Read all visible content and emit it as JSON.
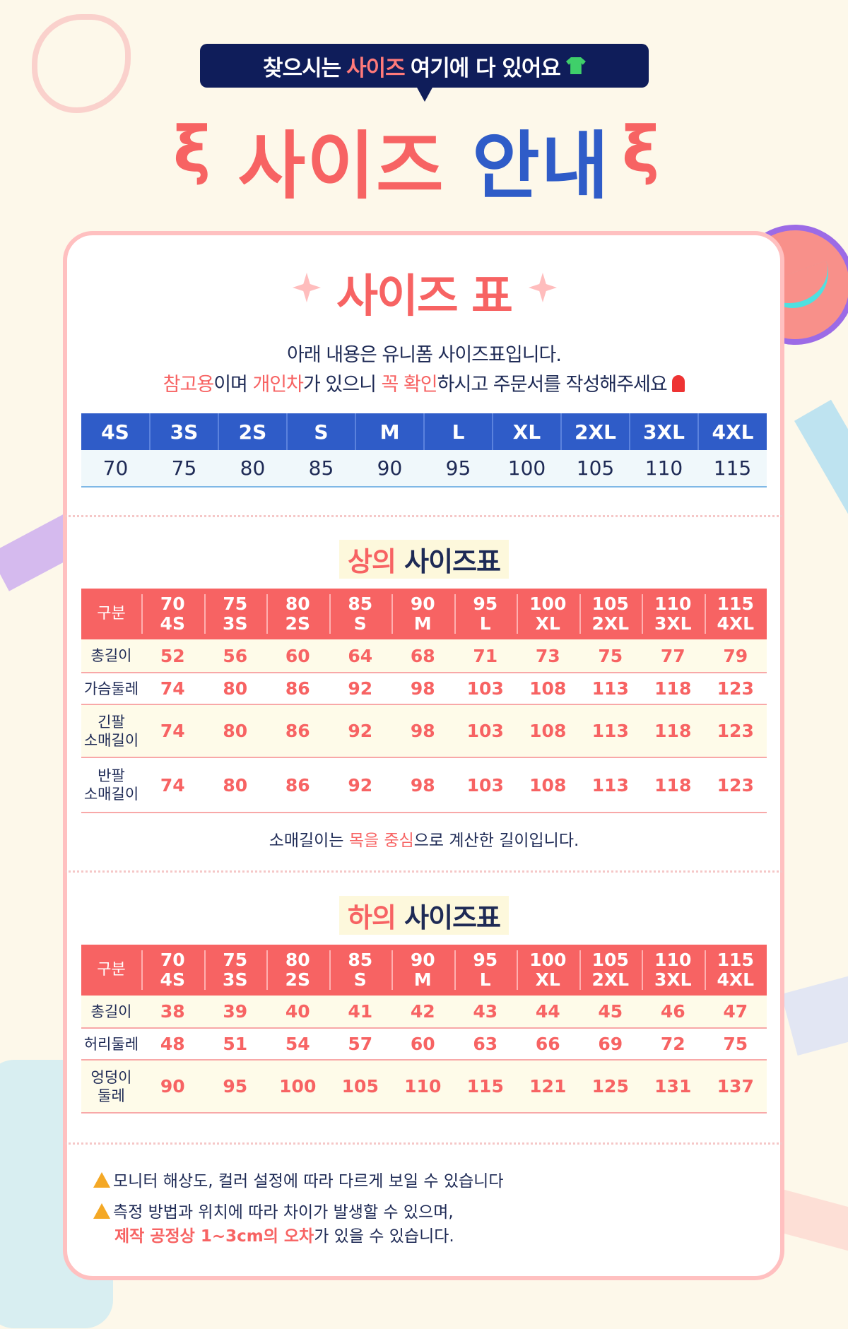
{
  "banner": {
    "pre": "찾으시는 ",
    "highlight": "사이즈",
    "post": " 여기에 다 있어요",
    "icon": "t-shirt-icon"
  },
  "title": {
    "part1": "사이즈",
    "part2": "안내"
  },
  "card": {
    "heading": "사이즈 표",
    "intro_line1": "아래 내용은 유니폼 사이즈표입니다.",
    "intro_line2_red1": "참고용",
    "intro_line2_a": "이며 ",
    "intro_line2_red2": "개인차",
    "intro_line2_b": "가 있으니 ",
    "intro_line2_red3": "꼭 확인",
    "intro_line2_c": "하시고 주문서를 작성해주세요",
    "size_map": {
      "headers": [
        "4S",
        "3S",
        "2S",
        "S",
        "M",
        "L",
        "XL",
        "2XL",
        "3XL",
        "4XL"
      ],
      "values": [
        "70",
        "75",
        "80",
        "85",
        "90",
        "95",
        "100",
        "105",
        "110",
        "115"
      ]
    },
    "top": {
      "title_red": "상의",
      "title_rest": " 사이즈표",
      "corner": "구분",
      "columns": [
        [
          "70",
          "4S"
        ],
        [
          "75",
          "3S"
        ],
        [
          "80",
          "2S"
        ],
        [
          "85",
          "S"
        ],
        [
          "90",
          "M"
        ],
        [
          "95",
          "L"
        ],
        [
          "100",
          "XL"
        ],
        [
          "105",
          "2XL"
        ],
        [
          "110",
          "3XL"
        ],
        [
          "115",
          "4XL"
        ]
      ],
      "rows": [
        {
          "label": [
            "총길이"
          ],
          "values": [
            "52",
            "56",
            "60",
            "64",
            "68",
            "71",
            "73",
            "75",
            "77",
            "79"
          ]
        },
        {
          "label": [
            "가슴둘레"
          ],
          "values": [
            "74",
            "80",
            "86",
            "92",
            "98",
            "103",
            "108",
            "113",
            "118",
            "123"
          ]
        },
        {
          "label": [
            "긴팔",
            "소매길이"
          ],
          "values": [
            "74",
            "80",
            "86",
            "92",
            "98",
            "103",
            "108",
            "113",
            "118",
            "123"
          ]
        },
        {
          "label": [
            "반팔",
            "소매길이"
          ],
          "values": [
            "74",
            "80",
            "86",
            "92",
            "98",
            "103",
            "108",
            "113",
            "118",
            "123"
          ]
        }
      ]
    },
    "sleeve_note": {
      "a": "소매길이는 ",
      "red": "목을 중심",
      "b": "으로 계산한 길이입니다."
    },
    "bottom": {
      "title_red": "하의",
      "title_rest": " 사이즈표",
      "corner": "구분",
      "columns": [
        [
          "70",
          "4S"
        ],
        [
          "75",
          "3S"
        ],
        [
          "80",
          "2S"
        ],
        [
          "85",
          "S"
        ],
        [
          "90",
          "M"
        ],
        [
          "95",
          "L"
        ],
        [
          "100",
          "XL"
        ],
        [
          "105",
          "2XL"
        ],
        [
          "110",
          "3XL"
        ],
        [
          "115",
          "4XL"
        ]
      ],
      "rows": [
        {
          "label": [
            "총길이"
          ],
          "values": [
            "38",
            "39",
            "40",
            "41",
            "42",
            "43",
            "44",
            "45",
            "46",
            "47"
          ]
        },
        {
          "label": [
            "허리둘레"
          ],
          "values": [
            "48",
            "51",
            "54",
            "57",
            "60",
            "63",
            "66",
            "69",
            "72",
            "75"
          ]
        },
        {
          "label": [
            "엉덩이",
            "둘레"
          ],
          "values": [
            "90",
            "95",
            "100",
            "105",
            "110",
            "115",
            "121",
            "125",
            "131",
            "137"
          ]
        }
      ]
    },
    "warnings": {
      "w1": "모니터 해상도, 컬러 설정에 따라 다르게 보일 수 있습니다",
      "w2": "측정 방법과 위치에 따라 차이가 발생할 수 있으며,",
      "w3_red": "제작 공정상 1~3cm의 오차",
      "w3_rest": "가 있을 수 있습니다."
    }
  },
  "colors": {
    "red": "#f76363",
    "blue": "#2f5cc8",
    "navy": "#0f1d5a",
    "background": "#fdf8ea"
  }
}
